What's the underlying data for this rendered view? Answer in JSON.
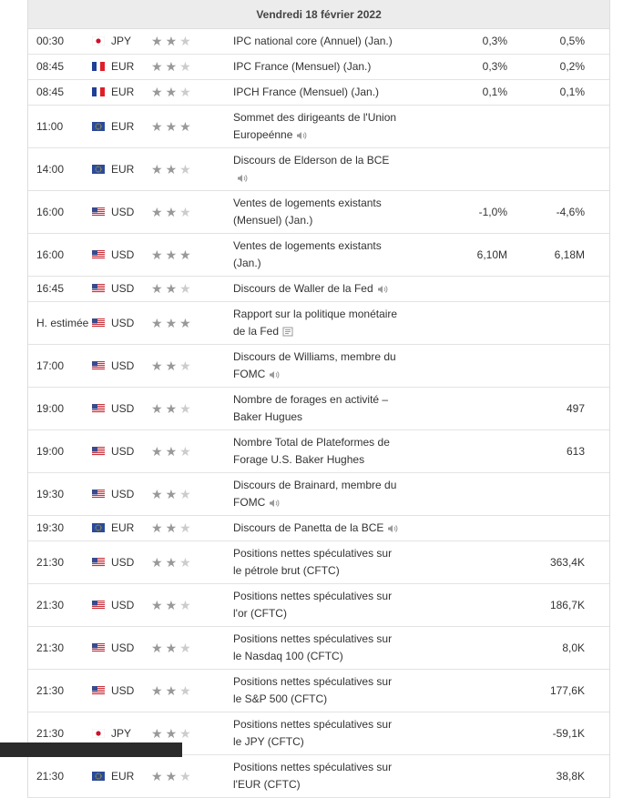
{
  "header": {
    "title": "Vendredi 18 février 2022"
  },
  "events": [
    {
      "time": "00:30",
      "flag": "JP",
      "currency": "JPY",
      "importance": 2,
      "event": "IPC national core (Annuel) (Jan.)",
      "value1": "0,3%",
      "value2": "0,5%"
    },
    {
      "time": "08:45",
      "flag": "FR",
      "currency": "EUR",
      "importance": 2,
      "event": "IPC France (Mensuel) (Jan.)",
      "value1": "0,3%",
      "value2": "0,2%"
    },
    {
      "time": "08:45",
      "flag": "FR",
      "currency": "EUR",
      "importance": 2,
      "event": "IPCH France (Mensuel) (Jan.)",
      "value1": "0,1%",
      "value2": "0,1%"
    },
    {
      "time": "11:00",
      "flag": "EU",
      "currency": "EUR",
      "importance": 3,
      "event": "Sommet des dirigeants de l'Union Europeénne",
      "icon": "speaker"
    },
    {
      "time": "14:00",
      "flag": "EU",
      "currency": "EUR",
      "importance": 2,
      "event": "Discours de Elderson de la BCE",
      "icon": "speaker"
    },
    {
      "time": "16:00",
      "flag": "US",
      "currency": "USD",
      "importance": 2,
      "event": "Ventes de logements existants (Mensuel) (Jan.)",
      "value1": "-1,0%",
      "value2": "-4,6%"
    },
    {
      "time": "16:00",
      "flag": "US",
      "currency": "USD",
      "importance": 3,
      "event": "Ventes de logements existants (Jan.)",
      "value1": "6,10M",
      "value2": "6,18M"
    },
    {
      "time": "16:45",
      "flag": "US",
      "currency": "USD",
      "importance": 2,
      "event": "Discours de Waller de la Fed",
      "icon": "speaker"
    },
    {
      "time": "H. estimée",
      "flag": "US",
      "currency": "USD",
      "importance": 3,
      "event": "Rapport sur la politique monétaire de la Fed",
      "icon": "report"
    },
    {
      "time": "17:00",
      "flag": "US",
      "currency": "USD",
      "importance": 2,
      "event": "Discours de Williams, membre du FOMC",
      "icon": "speaker"
    },
    {
      "time": "19:00",
      "flag": "US",
      "currency": "USD",
      "importance": 2,
      "event": "Nombre de forages en activité – Baker Hugues",
      "value2": "497"
    },
    {
      "time": "19:00",
      "flag": "US",
      "currency": "USD",
      "importance": 2,
      "event": "Nombre Total de Plateformes de Forage U.S. Baker Hughes",
      "value2": "613"
    },
    {
      "time": "19:30",
      "flag": "US",
      "currency": "USD",
      "importance": 2,
      "event": "Discours de Brainard, membre du FOMC",
      "icon": "speaker"
    },
    {
      "time": "19:30",
      "flag": "EU",
      "currency": "EUR",
      "importance": 2,
      "event": "Discours de Panetta de la BCE",
      "icon": "speaker"
    },
    {
      "time": "21:30",
      "flag": "US",
      "currency": "USD",
      "importance": 2,
      "event": "Positions nettes spéculatives sur le pétrole brut (CFTC)",
      "value2": "363,4K"
    },
    {
      "time": "21:30",
      "flag": "US",
      "currency": "USD",
      "importance": 2,
      "event": "Positions nettes spéculatives sur l'or (CFTC)",
      "value2": "186,7K"
    },
    {
      "time": "21:30",
      "flag": "US",
      "currency": "USD",
      "importance": 2,
      "event": "Positions nettes spéculatives sur le Nasdaq 100 (CFTC)",
      "value2": "8,0K"
    },
    {
      "time": "21:30",
      "flag": "US",
      "currency": "USD",
      "importance": 2,
      "event": "Positions nettes spéculatives sur le S&P 500 (CFTC)",
      "value2": "177,6K"
    },
    {
      "time": "21:30",
      "flag": "JP",
      "currency": "JPY",
      "importance": 2,
      "event": "Positions nettes spéculatives sur le JPY (CFTC)",
      "value2": "-59,1K"
    },
    {
      "time": "21:30",
      "flag": "EU",
      "currency": "EUR",
      "importance": 2,
      "event": "Positions nettes spéculatives sur l'EUR (CFTC)",
      "value2": "38,8K"
    }
  ]
}
